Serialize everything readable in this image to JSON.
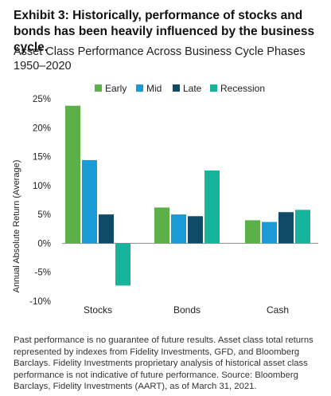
{
  "header": {
    "title": "Exhibit 3: Historically, performance of stocks and bonds has been heavily influenced by the business cycle.",
    "subtitle": "Asset Class Performance Across Business Cycle Phases 1950–2020"
  },
  "chart_data": {
    "type": "bar",
    "title": "",
    "xlabel": "",
    "ylabel": "Annual Absolute Return (Average)",
    "categories": [
      "Stocks",
      "Bonds",
      "Cash"
    ],
    "series": [
      {
        "name": "Early",
        "color": "#5bb04a",
        "values": [
          23.8,
          6.2,
          4.0
        ]
      },
      {
        "name": "Mid",
        "color": "#1a9ad6",
        "values": [
          14.4,
          5.0,
          3.7
        ]
      },
      {
        "name": "Late",
        "color": "#0f4b66",
        "values": [
          5.0,
          4.7,
          5.4
        ]
      },
      {
        "name": "Recession",
        "color": "#17b39d",
        "values": [
          -7.3,
          12.6,
          5.8
        ]
      }
    ],
    "ylim": [
      -10,
      25
    ],
    "yticks": [
      25,
      20,
      15,
      10,
      5,
      0,
      -5,
      -10
    ],
    "ytick_labels": [
      "25%",
      "20%",
      "15%",
      "10%",
      "5%",
      "0%",
      "-5%",
      "-10%"
    ],
    "grid": false,
    "legend": "top"
  },
  "footnote": "Past performance is no guarantee of future results. Asset class total returns represented by indexes from Fidelity Investments, GFD, and Bloomberg Barclays. Fidelity Investments proprietary analysis of historical asset class performance is not indicative of future performance. Source: Bloomberg Barclays, Fidelity Investments (AART), as of March 31, 2021."
}
